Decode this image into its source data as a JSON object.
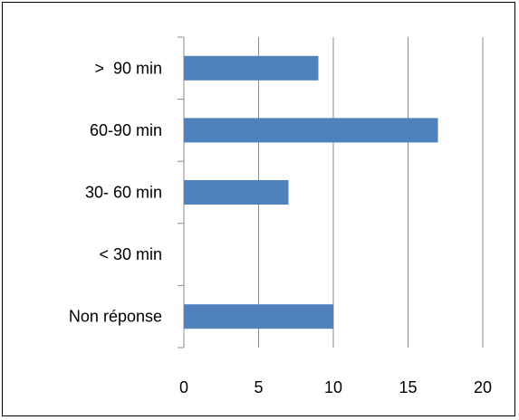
{
  "chart_data": {
    "type": "bar",
    "orientation": "horizontal",
    "categories": [
      ">  90 min",
      "60-90 min",
      "30- 60 min",
      "< 30 min",
      "Non réponse"
    ],
    "values": [
      9,
      17,
      7,
      0,
      10
    ],
    "x_ticks": [
      "0",
      "5",
      "10",
      "15",
      "20"
    ],
    "xlim": [
      0,
      20
    ],
    "grid": "vertical",
    "legend": "none",
    "title": "",
    "xlabel": "",
    "ylabel": "",
    "colors": {
      "bar": "#4F81BD",
      "grid": "#8C8C8C",
      "axis": "#8C8C8C"
    }
  }
}
